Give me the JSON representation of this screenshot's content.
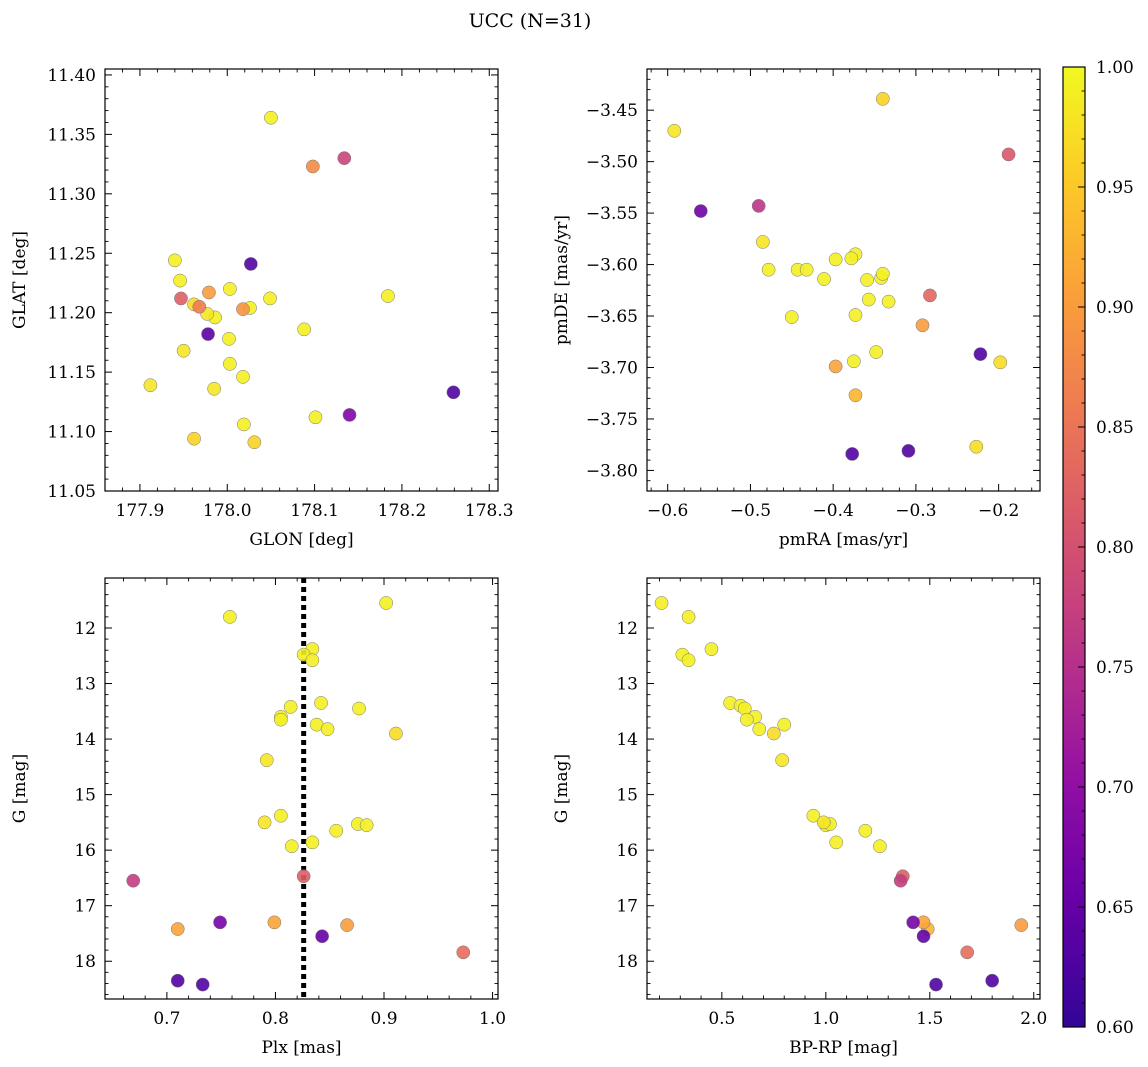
{
  "figure": {
    "suptitle": "UCC (N=31)"
  },
  "colorbar": {
    "min": 0.6,
    "max": 1.0,
    "ticks": [
      0.6,
      0.65,
      0.7,
      0.75,
      0.8,
      0.85,
      0.9,
      0.95,
      1.0
    ],
    "tick_labels": [
      "0.60",
      "0.65",
      "0.70",
      "0.75",
      "0.80",
      "0.85",
      "0.90",
      "0.95",
      "1.00"
    ],
    "colormap": "plasma"
  },
  "chart_data": [
    {
      "type": "scatter",
      "xlabel": "GLON [deg]",
      "ylabel": "GLAT [deg]",
      "xlim": [
        177.86,
        178.31
      ],
      "ylim": [
        11.05,
        11.405
      ],
      "xticks": [
        177.9,
        178.0,
        178.1,
        178.2,
        178.3
      ],
      "xtick_labels": [
        "177.9",
        "178.0",
        "178.1",
        "178.2",
        "178.3"
      ],
      "yticks": [
        11.05,
        11.1,
        11.15,
        11.2,
        11.25,
        11.3,
        11.35,
        11.4
      ],
      "ytick_labels": [
        "11.05",
        "11.10",
        "11.15",
        "11.20",
        "11.25",
        "11.30",
        "11.35",
        "11.40"
      ],
      "points": [
        {
          "x": 178.05,
          "y": 11.364,
          "c": 0.99
        },
        {
          "x": 178.098,
          "y": 11.323,
          "c": 0.88
        },
        {
          "x": 178.134,
          "y": 11.33,
          "c": 0.78
        },
        {
          "x": 177.94,
          "y": 11.244,
          "c": 0.99
        },
        {
          "x": 177.946,
          "y": 11.227,
          "c": 0.99
        },
        {
          "x": 178.027,
          "y": 11.241,
          "c": 0.63
        },
        {
          "x": 177.947,
          "y": 11.212,
          "c": 0.82
        },
        {
          "x": 177.979,
          "y": 11.217,
          "c": 0.9
        },
        {
          "x": 177.962,
          "y": 11.207,
          "c": 0.97
        },
        {
          "x": 177.968,
          "y": 11.205,
          "c": 0.86
        },
        {
          "x": 178.003,
          "y": 11.22,
          "c": 0.99
        },
        {
          "x": 178.049,
          "y": 11.212,
          "c": 0.99
        },
        {
          "x": 178.018,
          "y": 11.203,
          "c": 0.89
        },
        {
          "x": 178.026,
          "y": 11.204,
          "c": 0.99
        },
        {
          "x": 177.977,
          "y": 11.199,
          "c": 0.98
        },
        {
          "x": 177.986,
          "y": 11.196,
          "c": 0.99
        },
        {
          "x": 178.184,
          "y": 11.214,
          "c": 0.99
        },
        {
          "x": 177.978,
          "y": 11.182,
          "c": 0.64
        },
        {
          "x": 178.002,
          "y": 11.178,
          "c": 0.99
        },
        {
          "x": 178.088,
          "y": 11.186,
          "c": 0.99
        },
        {
          "x": 177.95,
          "y": 11.168,
          "c": 0.98
        },
        {
          "x": 178.003,
          "y": 11.157,
          "c": 0.99
        },
        {
          "x": 178.018,
          "y": 11.146,
          "c": 0.99
        },
        {
          "x": 177.912,
          "y": 11.139,
          "c": 0.98
        },
        {
          "x": 177.985,
          "y": 11.136,
          "c": 0.98
        },
        {
          "x": 178.259,
          "y": 11.133,
          "c": 0.63
        },
        {
          "x": 178.101,
          "y": 11.112,
          "c": 0.99
        },
        {
          "x": 178.14,
          "y": 11.114,
          "c": 0.68
        },
        {
          "x": 178.019,
          "y": 11.106,
          "c": 0.99
        },
        {
          "x": 177.962,
          "y": 11.094,
          "c": 0.96
        },
        {
          "x": 178.031,
          "y": 11.091,
          "c": 0.96
        }
      ]
    },
    {
      "type": "scatter",
      "xlabel": "pmRA [mas/yr]",
      "ylabel": "pmDE [mas/yr]",
      "xlim": [
        -0.625,
        -0.15
      ],
      "ylim": [
        -3.82,
        -3.41
      ],
      "xticks": [
        -0.6,
        -0.5,
        -0.4,
        -0.3,
        -0.2
      ],
      "xtick_labels": [
        "−0.6",
        "−0.5",
        "−0.4",
        "−0.3",
        "−0.2"
      ],
      "yticks": [
        -3.8,
        -3.75,
        -3.7,
        -3.65,
        -3.6,
        -3.55,
        -3.5,
        -3.45
      ],
      "ytick_labels": [
        "−3.80",
        "−3.75",
        "−3.70",
        "−3.65",
        "−3.60",
        "−3.55",
        "−3.50",
        "−3.45"
      ],
      "points": [
        {
          "x": -0.34,
          "y": -3.439,
          "c": 0.96
        },
        {
          "x": -0.592,
          "y": -3.47,
          "c": 0.98
        },
        {
          "x": -0.188,
          "y": -3.493,
          "c": 0.81
        },
        {
          "x": -0.56,
          "y": -3.548,
          "c": 0.66
        },
        {
          "x": -0.49,
          "y": -3.543,
          "c": 0.76
        },
        {
          "x": -0.485,
          "y": -3.578,
          "c": 0.98
        },
        {
          "x": -0.373,
          "y": -3.59,
          "c": 0.99
        },
        {
          "x": -0.397,
          "y": -3.595,
          "c": 0.99
        },
        {
          "x": -0.378,
          "y": -3.594,
          "c": 0.99
        },
        {
          "x": -0.478,
          "y": -3.605,
          "c": 0.99
        },
        {
          "x": -0.443,
          "y": -3.605,
          "c": 0.99
        },
        {
          "x": -0.432,
          "y": -3.605,
          "c": 0.99
        },
        {
          "x": -0.411,
          "y": -3.614,
          "c": 0.99
        },
        {
          "x": -0.342,
          "y": -3.613,
          "c": 0.99
        },
        {
          "x": -0.34,
          "y": -3.609,
          "c": 0.99
        },
        {
          "x": -0.359,
          "y": -3.615,
          "c": 0.99
        },
        {
          "x": -0.357,
          "y": -3.634,
          "c": 0.99
        },
        {
          "x": -0.333,
          "y": -3.636,
          "c": 0.99
        },
        {
          "x": -0.283,
          "y": -3.63,
          "c": 0.83
        },
        {
          "x": -0.45,
          "y": -3.651,
          "c": 0.99
        },
        {
          "x": -0.373,
          "y": -3.649,
          "c": 0.99
        },
        {
          "x": -0.292,
          "y": -3.659,
          "c": 0.9
        },
        {
          "x": -0.348,
          "y": -3.685,
          "c": 0.99
        },
        {
          "x": -0.222,
          "y": -3.687,
          "c": 0.63
        },
        {
          "x": -0.375,
          "y": -3.694,
          "c": 0.99
        },
        {
          "x": -0.198,
          "y": -3.695,
          "c": 0.97
        },
        {
          "x": -0.397,
          "y": -3.699,
          "c": 0.91
        },
        {
          "x": -0.373,
          "y": -3.727,
          "c": 0.93
        },
        {
          "x": -0.227,
          "y": -3.777,
          "c": 0.97
        },
        {
          "x": -0.377,
          "y": -3.784,
          "c": 0.63
        },
        {
          "x": -0.309,
          "y": -3.781,
          "c": 0.63
        }
      ]
    },
    {
      "type": "scatter",
      "xlabel": "Plx [mas]",
      "ylabel": "G [mag]",
      "xlim": [
        0.643,
        1.005
      ],
      "ylim": [
        18.68,
        11.1
      ],
      "y_inverted": true,
      "xticks": [
        0.7,
        0.8,
        0.9,
        1.0
      ],
      "xtick_labels": [
        "0.7",
        "0.8",
        "0.9",
        "1.0"
      ],
      "yticks": [
        12,
        13,
        14,
        15,
        16,
        17,
        18
      ],
      "ytick_labels": [
        "12",
        "13",
        "14",
        "15",
        "16",
        "17",
        "18"
      ],
      "reference_line_x": 0.826,
      "points": [
        {
          "x": 0.902,
          "y": 11.55,
          "c": 0.99
        },
        {
          "x": 0.758,
          "y": 11.8,
          "c": 0.99
        },
        {
          "x": 0.834,
          "y": 12.38,
          "c": 0.99
        },
        {
          "x": 0.826,
          "y": 12.48,
          "c": 0.99
        },
        {
          "x": 0.834,
          "y": 12.58,
          "c": 0.99
        },
        {
          "x": 0.842,
          "y": 13.35,
          "c": 0.99
        },
        {
          "x": 0.877,
          "y": 13.45,
          "c": 0.99
        },
        {
          "x": 0.814,
          "y": 13.42,
          "c": 0.99
        },
        {
          "x": 0.805,
          "y": 13.6,
          "c": 0.99
        },
        {
          "x": 0.805,
          "y": 13.65,
          "c": 0.99
        },
        {
          "x": 0.838,
          "y": 13.74,
          "c": 0.99
        },
        {
          "x": 0.848,
          "y": 13.82,
          "c": 0.99
        },
        {
          "x": 0.911,
          "y": 13.9,
          "c": 0.97
        },
        {
          "x": 0.792,
          "y": 14.38,
          "c": 0.98
        },
        {
          "x": 0.805,
          "y": 15.38,
          "c": 0.99
        },
        {
          "x": 0.79,
          "y": 15.5,
          "c": 0.98
        },
        {
          "x": 0.876,
          "y": 15.53,
          "c": 0.99
        },
        {
          "x": 0.884,
          "y": 15.55,
          "c": 0.99
        },
        {
          "x": 0.856,
          "y": 15.65,
          "c": 0.99
        },
        {
          "x": 0.834,
          "y": 15.86,
          "c": 0.99
        },
        {
          "x": 0.815,
          "y": 15.93,
          "c": 0.99
        },
        {
          "x": 0.669,
          "y": 16.55,
          "c": 0.77
        },
        {
          "x": 0.826,
          "y": 16.47,
          "c": 0.82
        },
        {
          "x": 0.749,
          "y": 17.3,
          "c": 0.67
        },
        {
          "x": 0.799,
          "y": 17.3,
          "c": 0.91
        },
        {
          "x": 0.866,
          "y": 17.35,
          "c": 0.9
        },
        {
          "x": 0.71,
          "y": 17.42,
          "c": 0.91
        },
        {
          "x": 0.843,
          "y": 17.55,
          "c": 0.65
        },
        {
          "x": 0.973,
          "y": 17.84,
          "c": 0.84
        },
        {
          "x": 0.71,
          "y": 18.35,
          "c": 0.63
        },
        {
          "x": 0.733,
          "y": 18.42,
          "c": 0.63
        }
      ]
    },
    {
      "type": "scatter",
      "xlabel": "BP-RP [mag]",
      "ylabel": "G [mag]",
      "xlim": [
        0.14,
        2.03
      ],
      "ylim": [
        18.68,
        11.1
      ],
      "y_inverted": true,
      "xticks": [
        0.5,
        1.0,
        1.5,
        2.0
      ],
      "xtick_labels": [
        "0.5",
        "1.0",
        "1.5",
        "2.0"
      ],
      "yticks": [
        12,
        13,
        14,
        15,
        16,
        17,
        18
      ],
      "ytick_labels": [
        "12",
        "13",
        "14",
        "15",
        "16",
        "17",
        "18"
      ],
      "points": [
        {
          "x": 0.21,
          "y": 11.55,
          "c": 0.99
        },
        {
          "x": 0.34,
          "y": 11.8,
          "c": 0.99
        },
        {
          "x": 0.45,
          "y": 12.38,
          "c": 0.99
        },
        {
          "x": 0.31,
          "y": 12.48,
          "c": 0.99
        },
        {
          "x": 0.34,
          "y": 12.58,
          "c": 0.99
        },
        {
          "x": 0.54,
          "y": 13.35,
          "c": 0.99
        },
        {
          "x": 0.59,
          "y": 13.4,
          "c": 0.99
        },
        {
          "x": 0.61,
          "y": 13.45,
          "c": 0.99
        },
        {
          "x": 0.66,
          "y": 13.6,
          "c": 0.99
        },
        {
          "x": 0.62,
          "y": 13.65,
          "c": 0.99
        },
        {
          "x": 0.8,
          "y": 13.74,
          "c": 0.99
        },
        {
          "x": 0.68,
          "y": 13.82,
          "c": 0.99
        },
        {
          "x": 0.75,
          "y": 13.9,
          "c": 0.97
        },
        {
          "x": 0.79,
          "y": 14.38,
          "c": 0.98
        },
        {
          "x": 0.94,
          "y": 15.38,
          "c": 0.99
        },
        {
          "x": 0.99,
          "y": 15.5,
          "c": 0.98
        },
        {
          "x": 1.0,
          "y": 15.55,
          "c": 0.99
        },
        {
          "x": 1.02,
          "y": 15.53,
          "c": 0.99
        },
        {
          "x": 1.19,
          "y": 15.65,
          "c": 0.99
        },
        {
          "x": 1.05,
          "y": 15.86,
          "c": 0.99
        },
        {
          "x": 1.26,
          "y": 15.93,
          "c": 0.99
        },
        {
          "x": 1.37,
          "y": 16.47,
          "c": 0.82
        },
        {
          "x": 1.36,
          "y": 16.55,
          "c": 0.77
        },
        {
          "x": 1.42,
          "y": 17.3,
          "c": 0.67
        },
        {
          "x": 1.47,
          "y": 17.3,
          "c": 0.91
        },
        {
          "x": 1.49,
          "y": 17.42,
          "c": 0.93
        },
        {
          "x": 1.47,
          "y": 17.55,
          "c": 0.65
        },
        {
          "x": 1.94,
          "y": 17.35,
          "c": 0.9
        },
        {
          "x": 1.68,
          "y": 17.84,
          "c": 0.84
        },
        {
          "x": 1.8,
          "y": 18.35,
          "c": 0.63
        },
        {
          "x": 1.53,
          "y": 18.42,
          "c": 0.63
        }
      ]
    }
  ]
}
